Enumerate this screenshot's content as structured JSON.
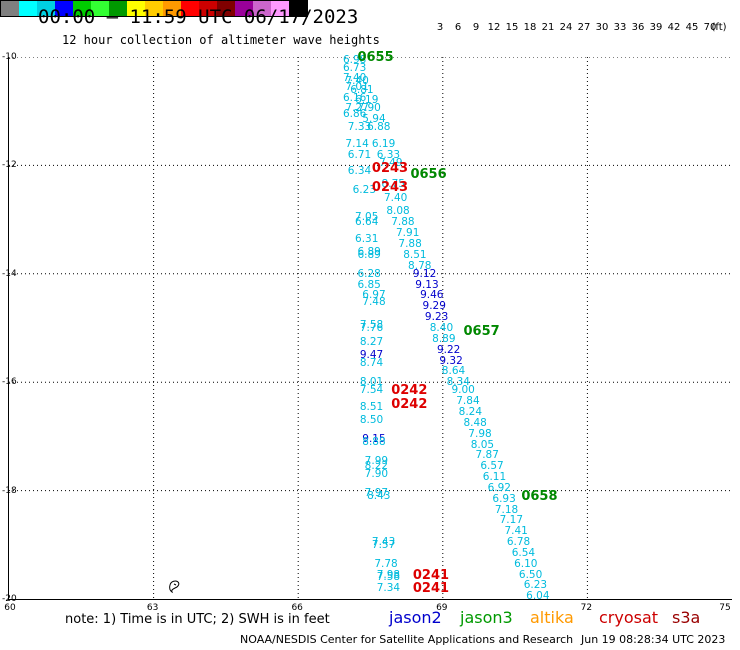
{
  "title": "00:00 — 11:59 UTC 06/17/2023",
  "subtitle": "12 hour collection of altimeter wave heights",
  "colorbar": {
    "colors": [
      "#7f7f7f",
      "#00ffff",
      "#00cfe0",
      "#0000ff",
      "#00cc00",
      "#33ff33",
      "#009900",
      "#ffff00",
      "#ffcc00",
      "#ff9900",
      "#ff0000",
      "#cc0000",
      "#800000",
      "#990099",
      "#cc66cc",
      "#ff99ff",
      "#000000"
    ],
    "labels": [
      "3",
      "6",
      "9",
      "12",
      "15",
      "18",
      "21",
      "24",
      "27",
      "30",
      "33",
      "36",
      "39",
      "42",
      "45",
      "70",
      "(ft)"
    ]
  },
  "axes": {
    "y_labels": [
      "-10",
      "-12",
      "-14",
      "-16",
      "-18",
      "-20"
    ],
    "x_labels": [
      "60",
      "63",
      "66",
      "69",
      "72",
      "75"
    ]
  },
  "chart_data": {
    "type": "scatter",
    "xlim": [
      60,
      75
    ],
    "ylim": [
      -20,
      -10
    ],
    "grid": true,
    "series": [
      {
        "name": "jason2",
        "color": "#0000cc"
      },
      {
        "name": "jason3",
        "color": "#009900"
      },
      {
        "name": "altika",
        "color": "#ff9900"
      },
      {
        "name": "cryosat",
        "color": "#cc0000"
      },
      {
        "name": "s3a",
        "color": "#990000"
      }
    ],
    "points": [
      {
        "x": 66.95,
        "y": -10.05,
        "v": "6.98",
        "c": "#00bbdd"
      },
      {
        "x": 66.95,
        "y": -10.2,
        "v": "6.73",
        "c": "#00bbdd"
      },
      {
        "x": 66.95,
        "y": -10.38,
        "v": "7.40",
        "c": "#00bbdd"
      },
      {
        "x": 67.0,
        "y": -10.45,
        "v": "7.40",
        "c": "#00bbdd"
      },
      {
        "x": 67.0,
        "y": -10.55,
        "v": "7.01",
        "c": "#00bbdd"
      },
      {
        "x": 67.1,
        "y": -10.6,
        "v": "6.81",
        "c": "#00bbdd"
      },
      {
        "x": 66.95,
        "y": -10.75,
        "v": "6.16",
        "c": "#00bbdd"
      },
      {
        "x": 67.2,
        "y": -10.8,
        "v": "6.19",
        "c": "#00bbdd"
      },
      {
        "x": 67.0,
        "y": -10.95,
        "v": "7.27",
        "c": "#00bbdd"
      },
      {
        "x": 67.25,
        "y": -10.95,
        "v": "7.90",
        "c": "#00bbdd"
      },
      {
        "x": 66.95,
        "y": -11.05,
        "v": "6.86",
        "c": "#00bbdd"
      },
      {
        "x": 67.35,
        "y": -11.15,
        "v": "5.94",
        "c": "#00bbdd"
      },
      {
        "x": 67.05,
        "y": -11.3,
        "v": "7.33",
        "c": "#00bbdd"
      },
      {
        "x": 67.45,
        "y": -11.3,
        "v": "6.88",
        "c": "#00bbdd"
      },
      {
        "x": 67.0,
        "y": -11.6,
        "v": "7.14",
        "c": "#00bbdd"
      },
      {
        "x": 67.55,
        "y": -11.6,
        "v": "6.19",
        "c": "#00bbdd"
      },
      {
        "x": 67.05,
        "y": -11.8,
        "v": "6.71",
        "c": "#00bbdd"
      },
      {
        "x": 67.65,
        "y": -11.8,
        "v": "6.33",
        "c": "#00bbdd"
      },
      {
        "x": 67.7,
        "y": -11.95,
        "v": "7.49",
        "c": "#00bbdd"
      },
      {
        "x": 67.05,
        "y": -12.1,
        "v": "6.34",
        "c": "#00bbdd"
      },
      {
        "x": 67.15,
        "y": -12.45,
        "v": "6.23",
        "c": "#00bbdd"
      },
      {
        "x": 67.75,
        "y": -12.35,
        "v": "8.75",
        "c": "#00bbdd"
      },
      {
        "x": 67.8,
        "y": -12.6,
        "v": "7.40",
        "c": "#00bbdd"
      },
      {
        "x": 67.85,
        "y": -12.85,
        "v": "8.08",
        "c": "#00bbdd"
      },
      {
        "x": 67.2,
        "y": -12.95,
        "v": "7.05",
        "c": "#00bbdd"
      },
      {
        "x": 67.2,
        "y": -13.05,
        "v": "6.64",
        "c": "#00bbdd"
      },
      {
        "x": 67.95,
        "y": -13.05,
        "v": "7.88",
        "c": "#00bbdd"
      },
      {
        "x": 68.05,
        "y": -13.25,
        "v": "7.91",
        "c": "#00bbdd"
      },
      {
        "x": 67.2,
        "y": -13.35,
        "v": "6.31",
        "c": "#00bbdd"
      },
      {
        "x": 68.1,
        "y": -13.45,
        "v": "7.88",
        "c": "#00bbdd"
      },
      {
        "x": 67.25,
        "y": -13.6,
        "v": "6.89",
        "c": "#00bbdd"
      },
      {
        "x": 67.25,
        "y": -13.65,
        "v": "6.89",
        "c": "#00bbdd"
      },
      {
        "x": 68.2,
        "y": -13.65,
        "v": "8.51",
        "c": "#00bbdd"
      },
      {
        "x": 68.3,
        "y": -13.85,
        "v": "8.78",
        "c": "#00bbdd"
      },
      {
        "x": 68.4,
        "y": -14.0,
        "v": "9.12",
        "c": "#0000cc"
      },
      {
        "x": 67.25,
        "y": -14.0,
        "v": "6.28",
        "c": "#00bbdd"
      },
      {
        "x": 67.25,
        "y": -14.2,
        "v": "6.85",
        "c": "#00bbdd"
      },
      {
        "x": 68.45,
        "y": -14.2,
        "v": "9.13",
        "c": "#0000cc"
      },
      {
        "x": 67.35,
        "y": -14.4,
        "v": "6.97",
        "c": "#00bbdd"
      },
      {
        "x": 68.55,
        "y": -14.4,
        "v": "9.46",
        "c": "#0000cc"
      },
      {
        "x": 67.35,
        "y": -14.52,
        "v": "7.48",
        "c": "#00bbdd"
      },
      {
        "x": 68.6,
        "y": -14.6,
        "v": "9.29",
        "c": "#0000cc"
      },
      {
        "x": 68.65,
        "y": -14.8,
        "v": "9.23",
        "c": "#0000cc"
      },
      {
        "x": 67.3,
        "y": -14.95,
        "v": "7.58",
        "c": "#00bbdd"
      },
      {
        "x": 67.3,
        "y": -15.0,
        "v": "7.76",
        "c": "#00bbdd"
      },
      {
        "x": 68.75,
        "y": -15.0,
        "v": "8.40",
        "c": "#00bbdd"
      },
      {
        "x": 67.3,
        "y": -15.25,
        "v": "8.27",
        "c": "#00bbdd"
      },
      {
        "x": 68.8,
        "y": -15.2,
        "v": "8.89",
        "c": "#00bbdd"
      },
      {
        "x": 67.3,
        "y": -15.5,
        "v": "9.47",
        "c": "#0000cc"
      },
      {
        "x": 68.9,
        "y": -15.4,
        "v": "9.22",
        "c": "#0000cc"
      },
      {
        "x": 67.3,
        "y": -15.65,
        "v": "8.74",
        "c": "#00bbdd"
      },
      {
        "x": 68.95,
        "y": -15.6,
        "v": "9.32",
        "c": "#0000cc"
      },
      {
        "x": 69.0,
        "y": -15.8,
        "v": "8.64",
        "c": "#00bbdd"
      },
      {
        "x": 69.1,
        "y": -16.0,
        "v": "8.34",
        "c": "#00bbdd"
      },
      {
        "x": 67.3,
        "y": -16.0,
        "v": "8.01",
        "c": "#00bbdd"
      },
      {
        "x": 67.3,
        "y": -16.15,
        "v": "7.54",
        "c": "#00bbdd"
      },
      {
        "x": 69.2,
        "y": -16.15,
        "v": "9.00",
        "c": "#00bbdd"
      },
      {
        "x": 69.3,
        "y": -16.35,
        "v": "7.84",
        "c": "#00bbdd"
      },
      {
        "x": 67.3,
        "y": -16.45,
        "v": "8.51",
        "c": "#00bbdd"
      },
      {
        "x": 69.35,
        "y": -16.55,
        "v": "8.24",
        "c": "#00bbdd"
      },
      {
        "x": 67.3,
        "y": -16.7,
        "v": "8.50",
        "c": "#00bbdd"
      },
      {
        "x": 69.45,
        "y": -16.75,
        "v": "8.48",
        "c": "#00bbdd"
      },
      {
        "x": 69.55,
        "y": -16.95,
        "v": "7.98",
        "c": "#00bbdd"
      },
      {
        "x": 67.35,
        "y": -17.05,
        "v": "9.15",
        "c": "#0000cc"
      },
      {
        "x": 67.35,
        "y": -17.1,
        "v": "8.88",
        "c": "#00bbdd"
      },
      {
        "x": 69.6,
        "y": -17.15,
        "v": "8.05",
        "c": "#00bbdd"
      },
      {
        "x": 69.7,
        "y": -17.35,
        "v": "7.87",
        "c": "#00bbdd"
      },
      {
        "x": 67.4,
        "y": -17.45,
        "v": "7.99",
        "c": "#00bbdd"
      },
      {
        "x": 67.4,
        "y": -17.55,
        "v": "8.22",
        "c": "#00bbdd"
      },
      {
        "x": 69.8,
        "y": -17.55,
        "v": "6.57",
        "c": "#00bbdd"
      },
      {
        "x": 67.4,
        "y": -17.7,
        "v": "7.90",
        "c": "#00bbdd"
      },
      {
        "x": 69.85,
        "y": -17.75,
        "v": "6.11",
        "c": "#00bbdd"
      },
      {
        "x": 69.95,
        "y": -17.95,
        "v": "6.92",
        "c": "#00bbdd"
      },
      {
        "x": 67.4,
        "y": -18.05,
        "v": "7.97",
        "c": "#00bbdd"
      },
      {
        "x": 67.45,
        "y": -18.1,
        "v": "8.43",
        "c": "#00bbdd"
      },
      {
        "x": 70.05,
        "y": -18.15,
        "v": "6.93",
        "c": "#00bbdd"
      },
      {
        "x": 70.1,
        "y": -18.35,
        "v": "7.18",
        "c": "#00bbdd"
      },
      {
        "x": 70.2,
        "y": -18.55,
        "v": "7.17",
        "c": "#00bbdd"
      },
      {
        "x": 70.3,
        "y": -18.75,
        "v": "7.41",
        "c": "#00bbdd"
      },
      {
        "x": 67.55,
        "y": -18.95,
        "v": "7.43",
        "c": "#00bbdd"
      },
      {
        "x": 67.55,
        "y": -19.0,
        "v": "7.57",
        "c": "#00bbdd"
      },
      {
        "x": 70.35,
        "y": -18.95,
        "v": "6.78",
        "c": "#00bbdd"
      },
      {
        "x": 70.45,
        "y": -19.15,
        "v": "6.54",
        "c": "#00bbdd"
      },
      {
        "x": 70.5,
        "y": -19.35,
        "v": "6.10",
        "c": "#00bbdd"
      },
      {
        "x": 67.6,
        "y": -19.35,
        "v": "7.78",
        "c": "#00bbdd"
      },
      {
        "x": 70.6,
        "y": -19.55,
        "v": "6.50",
        "c": "#00bbdd"
      },
      {
        "x": 67.65,
        "y": -19.55,
        "v": "7.98",
        "c": "#00bbdd"
      },
      {
        "x": 67.65,
        "y": -19.6,
        "v": "7.58",
        "c": "#00bbdd"
      },
      {
        "x": 70.7,
        "y": -19.75,
        "v": "6.23",
        "c": "#00bbdd"
      },
      {
        "x": 67.65,
        "y": -19.8,
        "v": "7.34",
        "c": "#00bbdd"
      },
      {
        "x": 70.75,
        "y": -19.95,
        "v": "6.04",
        "c": "#00bbdd"
      }
    ],
    "time_labels": [
      {
        "x": 67.25,
        "y": -10.0,
        "t": "0655",
        "c": "#008800"
      },
      {
        "x": 67.55,
        "y": -12.05,
        "t": "0243",
        "c": "#dd0000"
      },
      {
        "x": 68.35,
        "y": -12.15,
        "t": "0656",
        "c": "#008800"
      },
      {
        "x": 67.55,
        "y": -12.4,
        "t": "0243",
        "c": "#dd0000"
      },
      {
        "x": 69.45,
        "y": -15.05,
        "t": "0657",
        "c": "#008800"
      },
      {
        "x": 67.95,
        "y": -16.15,
        "t": "0242",
        "c": "#dd0000"
      },
      {
        "x": 67.95,
        "y": -16.4,
        "t": "0242",
        "c": "#dd0000"
      },
      {
        "x": 70.65,
        "y": -18.1,
        "t": "0658",
        "c": "#008800"
      },
      {
        "x": 68.4,
        "y": -19.55,
        "t": "0241",
        "c": "#dd0000"
      },
      {
        "x": 68.4,
        "y": -19.8,
        "t": "0241",
        "c": "#dd0000"
      }
    ]
  },
  "legend": {
    "note": "note: 1) Time is in UTC; 2) SWH is in feet",
    "jason2": "jason2",
    "jason3": "jason3",
    "altika": "altika",
    "cryosat": "cryosat",
    "s3a": "s3a"
  },
  "footer": {
    "credit": "NOAA/NESDIS Center for Satellite Applications and Research",
    "timestamp": "Jun 19 08:28:34 UTC 2023"
  }
}
